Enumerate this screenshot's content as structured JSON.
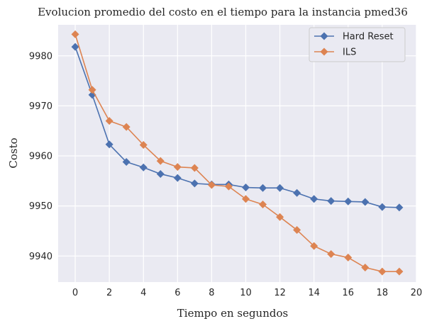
{
  "chart_data": {
    "type": "line",
    "title": "Evolucion promedio del costo en el tiempo para la instancia pmed36",
    "xlabel": "Tiempo en segundos",
    "ylabel": "Costo",
    "xlim": [
      -1,
      20
    ],
    "ylim": [
      9934.8,
      9986.2
    ],
    "xticks": [
      0,
      2,
      4,
      6,
      8,
      10,
      12,
      14,
      16,
      18,
      20
    ],
    "yticks": [
      9940,
      9950,
      9960,
      9970,
      9980
    ],
    "grid": true,
    "legend_position": "top-right",
    "x": [
      0,
      1,
      2,
      3,
      4,
      5,
      6,
      7,
      8,
      9,
      10,
      11,
      12,
      13,
      14,
      15,
      16,
      17,
      18,
      19
    ],
    "series": [
      {
        "name": "Hard Reset",
        "color": "#4c72b0",
        "marker": "diamond",
        "values": [
          9981.8,
          9972.2,
          9962.3,
          9958.8,
          9957.7,
          9956.4,
          9955.6,
          9954.5,
          9954.3,
          9954.3,
          9953.7,
          9953.6,
          9953.6,
          9952.6,
          9951.4,
          9951.0,
          9950.9,
          9950.8,
          9949.8,
          9949.7
        ]
      },
      {
        "name": "ILS",
        "color": "#dd8452",
        "marker": "diamond",
        "values": [
          9984.3,
          9973.2,
          9967.0,
          9965.8,
          9962.2,
          9959.0,
          9957.8,
          9957.6,
          9954.2,
          9953.9,
          9951.4,
          9950.3,
          9947.8,
          9945.2,
          9942.0,
          9940.4,
          9939.7,
          9937.7,
          9936.9,
          9936.9
        ]
      }
    ]
  }
}
